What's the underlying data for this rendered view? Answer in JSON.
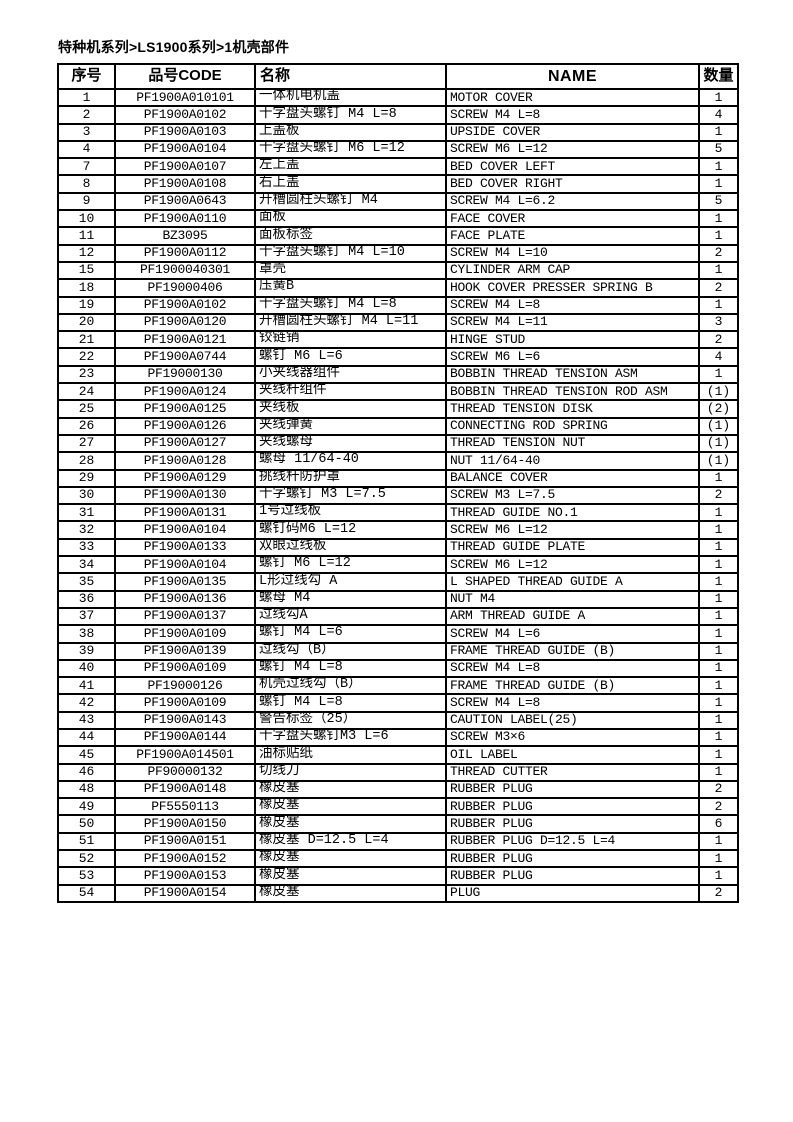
{
  "page": {
    "breadcrumb": "特种机系列>LS1900系列>1机壳部件"
  },
  "table": {
    "headers": [
      "序号",
      "品号CODE",
      "名称",
      "NAME",
      "数量"
    ],
    "rows": [
      [
        "1",
        "PF1900A010101",
        "一体机电机盖",
        "MOTOR COVER",
        "1"
      ],
      [
        "2",
        "PF1900A0102",
        "十字盘头螺钉 M4 L=8",
        "SCREW M4 L=8",
        "4"
      ],
      [
        "3",
        "PF1900A0103",
        "上盖板",
        "UPSIDE COVER",
        "1"
      ],
      [
        "4",
        "PF1900A0104",
        "十字盘头螺钉 M6 L=12",
        "SCREW M6 L=12",
        "5"
      ],
      [
        "7",
        "PF1900A0107",
        "左上盖",
        "BED COVER LEFT",
        "1"
      ],
      [
        "8",
        "PF1900A0108",
        "右上盖",
        "BED COVER RIGHT",
        "1"
      ],
      [
        "9",
        "PF1900A0643",
        "开槽圆柱头螺钉 M4",
        "SCREW M4 L=6.2",
        "5"
      ],
      [
        "10",
        "PF1900A0110",
        "面板",
        "FACE COVER",
        "1"
      ],
      [
        "11",
        "BZ3095",
        "面板标签",
        "FACE PLATE",
        "1"
      ],
      [
        "12",
        "PF1900A0112",
        "十字盘头螺钉 M4 L=10",
        "SCREW M4 L=10",
        "2"
      ],
      [
        "15",
        "PF1900040301",
        "罩壳",
        "CYLINDER ARM CAP",
        "1"
      ],
      [
        "18",
        "PF19000406",
        "压簧B",
        "HOOK COVER PRESSER SPRING B",
        "2"
      ],
      [
        "19",
        "PF1900A0102",
        "十字盘头螺钉 M4 L=8",
        "SCREW M4 L=8",
        "1"
      ],
      [
        "20",
        "PF1900A0120",
        "开槽圆柱头螺钉 M4 L=11",
        "SCREW M4 L=11",
        "3"
      ],
      [
        "21",
        "PF1900A0121",
        "铰链销",
        "HINGE STUD",
        "2"
      ],
      [
        "22",
        "PF1900A0744",
        "螺钉 M6 L=6",
        "SCREW M6 L=6",
        "4"
      ],
      [
        "23",
        "PF19000130",
        "小夹线器组件",
        "BOBBIN THREAD TENSION ASM",
        "1"
      ],
      [
        "24",
        "PF1900A0124",
        "夹线杆组件",
        "BOBBIN THREAD TENSION ROD ASM",
        "(1)"
      ],
      [
        "25",
        "PF1900A0125",
        "夹线板",
        "THREAD TENSION DISK",
        "(2)"
      ],
      [
        "26",
        "PF1900A0126",
        "夹线弹簧",
        "CONNECTING ROD SPRING",
        "(1)"
      ],
      [
        "27",
        "PF1900A0127",
        "夹线螺母",
        "THREAD TENSION NUT",
        "(1)"
      ],
      [
        "28",
        "PF1900A0128",
        "螺母 11/64-40",
        "NUT 11/64-40",
        "(1)"
      ],
      [
        "29",
        "PF1900A0129",
        "挑线杆防护罩",
        "BALANCE COVER",
        "1"
      ],
      [
        "30",
        "PF1900A0130",
        "十字螺钉 M3 L=7.5",
        "SCREW M3 L=7.5",
        "2"
      ],
      [
        "31",
        "PF1900A0131",
        "1号过线板",
        "THREAD GUIDE NO.1",
        "1"
      ],
      [
        "32",
        "PF1900A0104",
        "螺钉码M6 L=12",
        "SCREW M6 L=12",
        "1"
      ],
      [
        "33",
        "PF1900A0133",
        "双眼过线板",
        "THREAD GUIDE PLATE",
        "1"
      ],
      [
        "34",
        "PF1900A0104",
        "螺钉 M6 L=12",
        "SCREW M6 L=12",
        "1"
      ],
      [
        "35",
        "PF1900A0135",
        "L形过线勾 A",
        "L SHAPED THREAD GUIDE A",
        "1"
      ],
      [
        "36",
        "PF1900A0136",
        "螺母 M4",
        "NUT M4",
        "1"
      ],
      [
        "37",
        "PF1900A0137",
        "过线勾A",
        "ARM THREAD GUIDE A",
        "1"
      ],
      [
        "38",
        "PF1900A0109",
        "螺钉 M4 L=6",
        "SCREW M4 L=6",
        "1"
      ],
      [
        "39",
        "PF1900A0139",
        "过线勾（B）",
        "FRAME THREAD GUIDE (B)",
        "1"
      ],
      [
        "40",
        "PF1900A0109",
        "螺钉 M4 L=8",
        "SCREW M4 L=8",
        "1"
      ],
      [
        "41",
        "PF19000126",
        "机壳过线勾（B）",
        "FRAME THREAD GUIDE (B)",
        "1"
      ],
      [
        "42",
        "PF1900A0109",
        "螺钉 M4 L=8",
        "SCREW M4 L=8",
        "1"
      ],
      [
        "43",
        "PF1900A0143",
        "警告标签（25）",
        "CAUTION LABEL(25)",
        "1"
      ],
      [
        "44",
        "PF1900A0144",
        "十字盘头螺钉M3 L=6",
        "SCREW M3×6",
        "1"
      ],
      [
        "45",
        "PF1900A014501",
        "油标贴纸",
        "OIL LABEL",
        "1"
      ],
      [
        "46",
        "PF90000132",
        "切线刀",
        "THREAD CUTTER",
        "1"
      ],
      [
        "48",
        "PF1900A0148",
        "橡皮塞",
        "RUBBER PLUG",
        "2"
      ],
      [
        "49",
        "PF5550113",
        "橡皮塞",
        "RUBBER PLUG",
        "2"
      ],
      [
        "50",
        "PF1900A0150",
        "橡皮塞",
        "RUBBER PLUG",
        "6"
      ],
      [
        "51",
        "PF1900A0151",
        "橡皮塞 D=12.5 L=4",
        "RUBBER PLUG D=12.5 L=4",
        "1"
      ],
      [
        "52",
        "PF1900A0152",
        "橡皮塞",
        "RUBBER PLUG",
        "1"
      ],
      [
        "53",
        "PF1900A0153",
        "橡皮塞",
        "RUBBER PLUG",
        "1"
      ],
      [
        "54",
        "PF1900A0154",
        "橡皮塞",
        "PLUG",
        "2"
      ]
    ]
  }
}
